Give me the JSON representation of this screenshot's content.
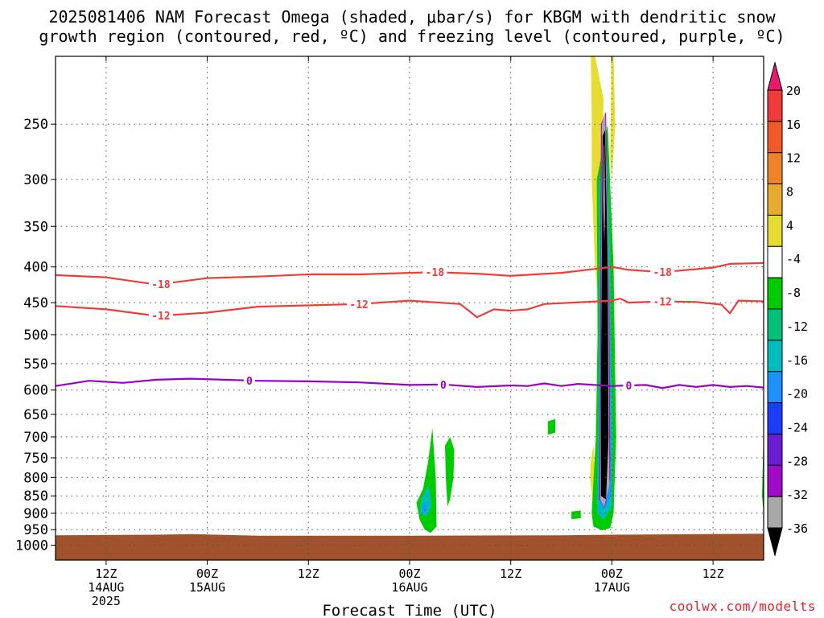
{
  "title_line_1": "2025081406 NAM Forecast Omega (shaded, μbar/s) for KBGM with dendritic snow",
  "title_line_2": "growth region (contoured, red, ºC) and freezing level (contoured, purple, ºC)",
  "watermark": "coolwx.com/modelts",
  "chart_data": {
    "type": "heatmap",
    "title": "2025081406 NAM Forecast Omega (shaded, μbar/s) for KBGM with dendritic snow growth region (contoured, red, ºC) and freezing level (contoured, purple, ºC)",
    "xlabel": "Forecast Time (UTC)",
    "ylabel": "",
    "x_range": [
      "2025-08-14T06Z",
      "2025-08-17T18Z"
    ],
    "y_range_hPa": [
      200,
      1050
    ],
    "y_scale": "log-pressure",
    "y_ticks": [
      "250",
      "300",
      "350",
      "400",
      "450",
      "500",
      "550",
      "600",
      "650",
      "700",
      "750",
      "800",
      "850",
      "900",
      "950",
      "1000"
    ],
    "y_tick_values": [
      250,
      300,
      350,
      400,
      450,
      500,
      550,
      600,
      650,
      700,
      750,
      800,
      850,
      900,
      950,
      1000
    ],
    "x_ticks": [
      {
        "hour": 6,
        "l1": "12Z",
        "l2": "14AUG",
        "l3": "2025"
      },
      {
        "hour": 18,
        "l1": "00Z",
        "l2": "15AUG",
        "l3": ""
      },
      {
        "hour": 30,
        "l1": "12Z",
        "l2": "",
        "l3": ""
      },
      {
        "hour": 42,
        "l1": "00Z",
        "l2": "16AUG",
        "l3": ""
      },
      {
        "hour": 54,
        "l1": "12Z",
        "l2": "",
        "l3": ""
      },
      {
        "hour": 66,
        "l1": "00Z",
        "l2": "17AUG",
        "l3": ""
      },
      {
        "hour": 78,
        "l1": "12Z",
        "l2": "",
        "l3": ""
      }
    ],
    "grid": true,
    "surface_pressure_hPa": 970,
    "colorbar": {
      "labels": [
        "20",
        "16",
        "12",
        "8",
        "4",
        "-4",
        "-8",
        "-12",
        "-16",
        "-20",
        "-24",
        "-28",
        "-32",
        "-36"
      ],
      "colors": [
        "#e8196e",
        "#f03a3c",
        "#f05a28",
        "#f0822a",
        "#e6aa30",
        "#e6dc32",
        "#ffffff",
        "#00cc00",
        "#00c07a",
        "#00bcbc",
        "#1e90ff",
        "#1e3cff",
        "#6a1ed2",
        "#a00ac8",
        "#a8a8a8",
        "#000000"
      ]
    },
    "series": [
      {
        "name": "-18",
        "color": "#f03c3c",
        "label_hours": [
          12.5,
          45,
          72
        ],
        "points": [
          [
            0,
            411
          ],
          [
            6,
            414
          ],
          [
            12,
            424
          ],
          [
            18,
            415
          ],
          [
            24,
            413
          ],
          [
            30,
            410
          ],
          [
            36,
            410
          ],
          [
            42,
            408
          ],
          [
            45,
            407
          ],
          [
            50,
            409
          ],
          [
            54,
            412
          ],
          [
            60,
            408
          ],
          [
            66,
            400
          ],
          [
            68,
            404
          ],
          [
            72,
            407
          ],
          [
            78,
            401
          ],
          [
            80,
            396
          ],
          [
            84,
            395
          ]
        ]
      },
      {
        "name": "-12",
        "color": "#f03c3c",
        "label_hours": [
          12.5,
          36,
          72
        ],
        "points": [
          [
            0,
            455
          ],
          [
            6,
            460
          ],
          [
            12,
            470
          ],
          [
            18,
            465
          ],
          [
            24,
            456
          ],
          [
            30,
            454
          ],
          [
            36,
            452
          ],
          [
            42,
            447
          ],
          [
            48,
            452
          ],
          [
            50,
            472
          ],
          [
            52,
            460
          ],
          [
            54,
            462
          ],
          [
            56,
            460
          ],
          [
            58,
            452
          ],
          [
            66,
            447
          ],
          [
            67,
            444
          ],
          [
            68,
            450
          ],
          [
            72,
            448
          ],
          [
            76,
            449
          ],
          [
            79,
            453
          ],
          [
            80,
            466
          ],
          [
            81,
            447
          ],
          [
            84,
            448
          ]
        ]
      },
      {
        "name": "0",
        "color": "#9b00c8",
        "label_hours": [
          23,
          46,
          68
        ],
        "points": [
          [
            0,
            592
          ],
          [
            4,
            582
          ],
          [
            8,
            586
          ],
          [
            12,
            580
          ],
          [
            16,
            578
          ],
          [
            20,
            580
          ],
          [
            24,
            582
          ],
          [
            30,
            583
          ],
          [
            36,
            585
          ],
          [
            42,
            590
          ],
          [
            46,
            589
          ],
          [
            50,
            594
          ],
          [
            54,
            591
          ],
          [
            56,
            592
          ],
          [
            58,
            587
          ],
          [
            60,
            592
          ],
          [
            62,
            588
          ],
          [
            66,
            592
          ],
          [
            68,
            591
          ],
          [
            70,
            590
          ],
          [
            72,
            596
          ],
          [
            74,
            590
          ],
          [
            76,
            594
          ],
          [
            78,
            590
          ],
          [
            80,
            594
          ],
          [
            82,
            592
          ],
          [
            84,
            595
          ]
        ]
      }
    ],
    "shaded_regions": [
      {
        "color": "#e6dc32",
        "points": [
          [
            64,
            200
          ],
          [
            65,
            230
          ],
          [
            64.8,
            300
          ],
          [
            64.6,
            420
          ],
          [
            64.7,
            500
          ],
          [
            65,
            520
          ],
          [
            64,
            400
          ],
          [
            63.6,
            300
          ],
          [
            63.6,
            240
          ],
          [
            63.5,
            200
          ]
        ]
      },
      {
        "color": "#e6dc32",
        "points": [
          [
            66.2,
            200
          ],
          [
            66.4,
            250
          ],
          [
            66,
            300
          ],
          [
            65.8,
            280
          ],
          [
            65.9,
            230
          ],
          [
            65.9,
            200
          ]
        ]
      },
      {
        "color": "#e6dc32",
        "points": [
          [
            63.5,
            760
          ],
          [
            63.8,
            720
          ],
          [
            64.1,
            840
          ],
          [
            63.7,
            860
          ],
          [
            63.4,
            800
          ]
        ]
      },
      {
        "color": "#00cc00",
        "points": [
          [
            64.2,
            300
          ],
          [
            65.5,
            250
          ],
          [
            66.2,
            400
          ],
          [
            66.5,
            700
          ],
          [
            66.2,
            900
          ],
          [
            65.8,
            945
          ],
          [
            64.8,
            952
          ],
          [
            63.8,
            940
          ],
          [
            63.6,
            900
          ],
          [
            64.1,
            700
          ],
          [
            64.3,
            500
          ]
        ]
      },
      {
        "color": "#00bcbc",
        "points": [
          [
            64.5,
            300
          ],
          [
            65.5,
            280
          ],
          [
            65.8,
            400
          ],
          [
            66.1,
            700
          ],
          [
            66,
            880
          ],
          [
            65,
            920
          ],
          [
            64.2,
            900
          ],
          [
            64.4,
            700
          ],
          [
            64.5,
            500
          ]
        ]
      },
      {
        "color": "#1e90ff",
        "points": [
          [
            64.6,
            400
          ],
          [
            65.4,
            380
          ],
          [
            65.8,
            600
          ],
          [
            65.9,
            850
          ],
          [
            65,
            890
          ],
          [
            64.4,
            860
          ],
          [
            64.5,
            700
          ]
        ]
      },
      {
        "color": "#a00ac8",
        "points": [
          [
            64.7,
            250
          ],
          [
            65.3,
            240
          ],
          [
            65.7,
            450
          ],
          [
            65.8,
            800
          ],
          [
            65.2,
            880
          ],
          [
            64.5,
            860
          ],
          [
            64.6,
            600
          ]
        ]
      },
      {
        "color": "#a8a8a8",
        "points": [
          [
            64.8,
            250
          ],
          [
            65.2,
            240
          ],
          [
            65.6,
            400
          ],
          [
            65.7,
            820
          ],
          [
            65.1,
            880
          ],
          [
            64.6,
            860
          ],
          [
            64.7,
            600
          ]
        ]
      },
      {
        "color": "#000000",
        "points": [
          [
            64.9,
            260
          ],
          [
            65.2,
            255
          ],
          [
            65.5,
            400
          ],
          [
            65.6,
            700
          ],
          [
            65.3,
            860
          ],
          [
            64.7,
            850
          ],
          [
            64.7,
            600
          ],
          [
            64.8,
            400
          ]
        ]
      },
      {
        "color": "#ffffff",
        "points": [
          [
            65.05,
            270
          ],
          [
            65.1,
            265
          ],
          [
            65.15,
            340
          ],
          [
            65.1,
            370
          ],
          [
            65.0,
            320
          ]
        ]
      },
      {
        "color": "#00cc00",
        "points": [
          [
            43.6,
            830
          ],
          [
            44.2,
            760
          ],
          [
            44.7,
            680
          ],
          [
            45.1,
            800
          ],
          [
            45.2,
            940
          ],
          [
            44.5,
            960
          ],
          [
            43.8,
            950
          ],
          [
            43.2,
            920
          ],
          [
            42.8,
            870
          ]
        ]
      },
      {
        "color": "#00bcbc",
        "points": [
          [
            43.4,
            860
          ],
          [
            44.3,
            820
          ],
          [
            44.6,
            880
          ],
          [
            44,
            910
          ],
          [
            43.2,
            900
          ]
        ]
      },
      {
        "color": "#1e90ff",
        "points": [
          [
            43.5,
            880
          ],
          [
            43.9,
            870
          ],
          [
            44,
            890
          ],
          [
            43.7,
            900
          ]
        ]
      },
      {
        "color": "#00cc00",
        "points": [
          [
            46.2,
            720
          ],
          [
            46.8,
            700
          ],
          [
            47.3,
            730
          ],
          [
            47.2,
            800
          ],
          [
            46.8,
            860
          ],
          [
            46.5,
            880
          ],
          [
            46.3,
            800
          ]
        ]
      },
      {
        "color": "#00cc00",
        "points": [
          [
            58.4,
            665
          ],
          [
            59.3,
            660
          ],
          [
            59.3,
            690
          ],
          [
            58.4,
            695
          ]
        ]
      },
      {
        "color": "#00cc00",
        "points": [
          [
            61.2,
            895
          ],
          [
            62.3,
            892
          ],
          [
            62.3,
            915
          ],
          [
            61.2,
            918
          ]
        ]
      },
      {
        "color": "#00cc00",
        "points": [
          [
            84,
            690
          ],
          [
            84.1,
            660
          ],
          [
            84.3,
            700
          ],
          [
            84.3,
            800
          ],
          [
            84,
            900
          ],
          [
            83.8,
            850
          ]
        ]
      }
    ]
  }
}
